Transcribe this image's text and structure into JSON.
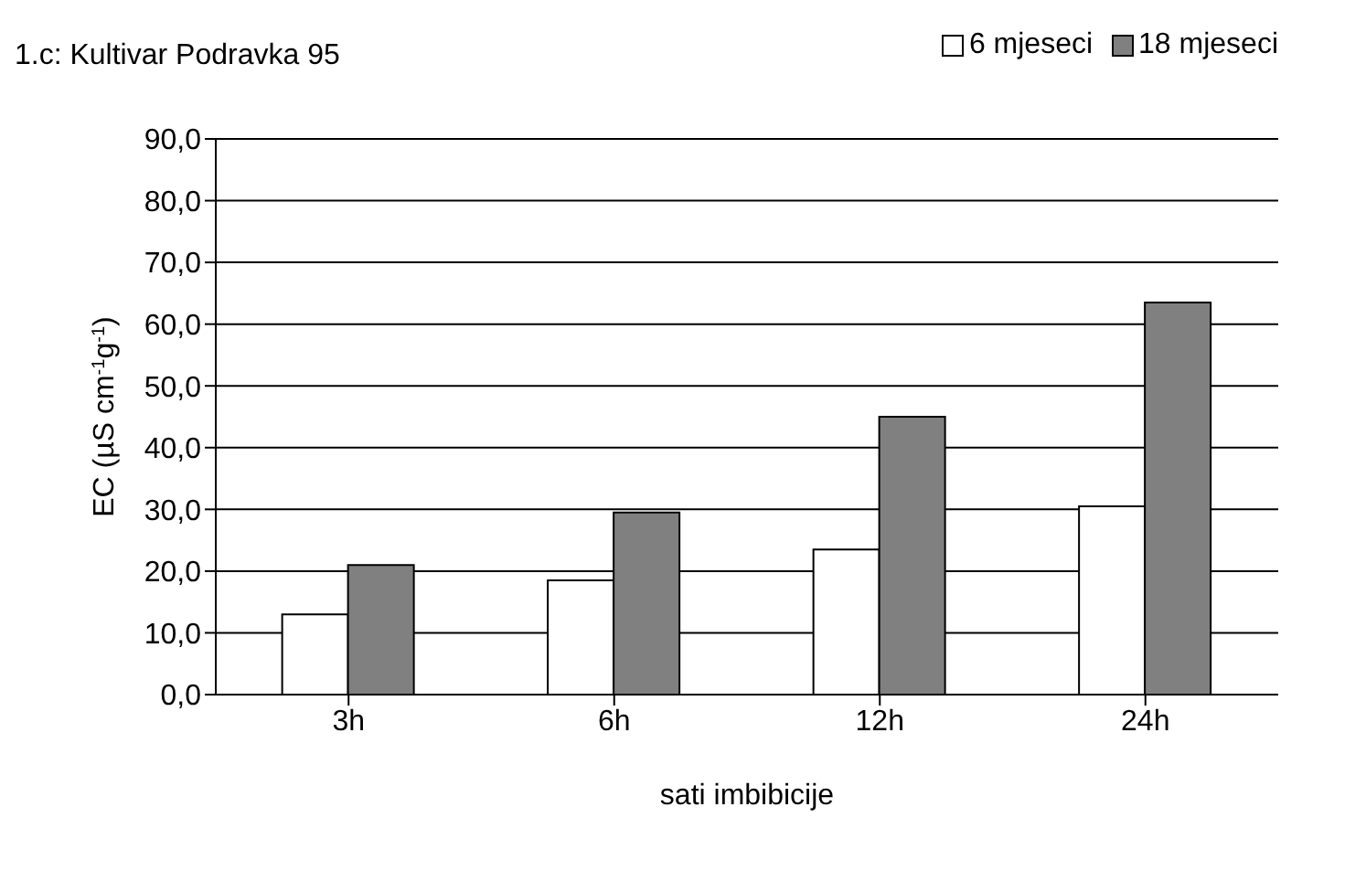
{
  "chart_data": {
    "type": "bar",
    "title": "1.c: Kultivar Podravka 95",
    "xlabel": "sati imbibicije",
    "ylabel": "EC (µS cm$^{-1}$g$^{-1}$)",
    "categories": [
      "3h",
      "6h",
      "12h",
      "24h"
    ],
    "series": [
      {
        "name": "6 mjeseci",
        "color": "#ffffff",
        "values": [
          13,
          18.5,
          23.5,
          30.5
        ]
      },
      {
        "name": "18 mjeseci",
        "color": "#808080",
        "values": [
          21,
          29.5,
          45,
          63.5
        ]
      }
    ],
    "ylim": [
      0,
      90
    ],
    "yticks": [
      {
        "value": 0,
        "label": "0,0"
      },
      {
        "value": 10,
        "label": "10,0"
      },
      {
        "value": 20,
        "label": "20,0"
      },
      {
        "value": 30,
        "label": "30,0"
      },
      {
        "value": 40,
        "label": "40,0"
      },
      {
        "value": 50,
        "label": "50,0"
      },
      {
        "value": 60,
        "label": "60,0"
      },
      {
        "value": 70,
        "label": "70,0"
      },
      {
        "value": 80,
        "label": "80,0"
      },
      {
        "value": 90,
        "label": "90,0"
      }
    ],
    "grid": "y",
    "legend": "top right"
  }
}
